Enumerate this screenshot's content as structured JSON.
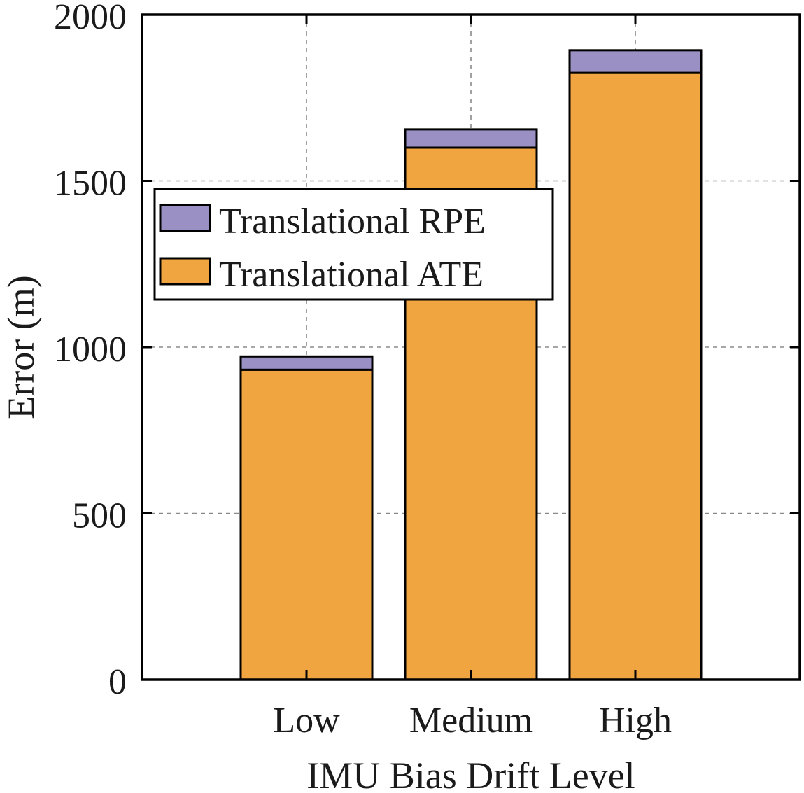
{
  "chart_data": {
    "type": "bar",
    "stacked": true,
    "categories": [
      "Low",
      "Medium",
      "High"
    ],
    "series": [
      {
        "name": "Translational ATE",
        "values": [
          932,
          1600,
          1825
        ],
        "color": "#F0A541"
      },
      {
        "name": "Translational RPE",
        "values": [
          40,
          55,
          68
        ],
        "color": "#9A90C4"
      }
    ],
    "legend_order": [
      "Translational RPE",
      "Translational ATE"
    ],
    "xlabel": "IMU Bias Drift Level",
    "ylabel": "Error (m)",
    "ylim": [
      0,
      2000
    ],
    "yticks": [
      "0",
      "500",
      "1000",
      "1500",
      "2000"
    ],
    "xlim": [
      0,
      4
    ],
    "x_positions": [
      1,
      2,
      3
    ],
    "grid": true,
    "legend_position": "upper-left"
  }
}
